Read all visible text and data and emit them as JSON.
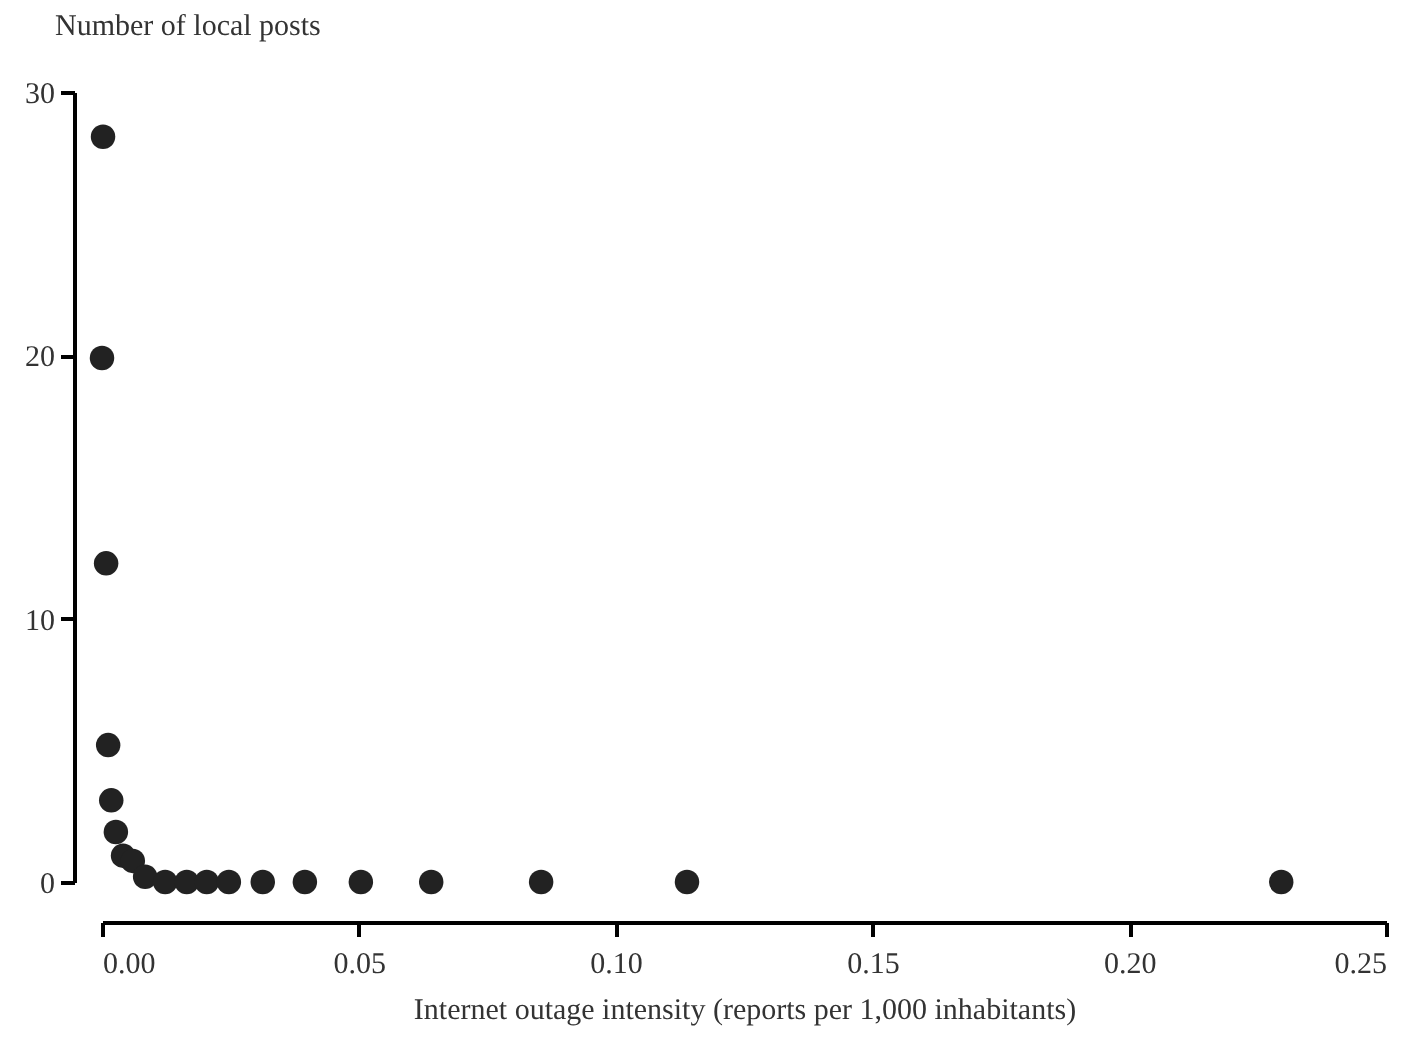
{
  "chart_data": {
    "type": "scatter",
    "xlabel": "Internet outage intensity (reports per 1,000 inhabitants)",
    "ylabel": "Number of local posts",
    "x": [
      0.0002,
      0.0,
      0.0008,
      0.0012,
      0.0018,
      0.0027,
      0.0041,
      0.006,
      0.0084,
      0.0123,
      0.0165,
      0.0204,
      0.0247,
      0.0313,
      0.0395,
      0.0504,
      0.0641,
      0.0855,
      0.1139,
      0.2296
    ],
    "values": [
      28.3,
      19.9,
      12.1,
      5.2,
      3.1,
      1.9,
      1.0,
      0.8,
      0.2,
      0,
      0,
      0,
      0,
      0,
      0,
      0,
      0,
      0,
      0,
      0
    ],
    "color": "#222222",
    "marker": "circle",
    "grid": false,
    "xlim": [
      0,
      0.25
    ],
    "xticks": [
      {
        "value": 0,
        "label": "0.00"
      },
      {
        "value": 0.05,
        "label": "0.05"
      },
      {
        "value": 0.1,
        "label": "0.10"
      },
      {
        "value": 0.15,
        "label": "0.15"
      },
      {
        "value": 0.2,
        "label": "0.20"
      },
      {
        "value": 0.25,
        "label": "0.25"
      }
    ],
    "ylim": [
      0,
      30
    ],
    "yticks": [
      0,
      10,
      20,
      30
    ]
  }
}
